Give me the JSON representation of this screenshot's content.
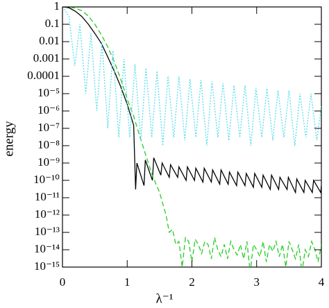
{
  "chart_data": {
    "type": "line",
    "xlabel": "λ⁻¹",
    "ylabel": "energy",
    "xlim": [
      0,
      4
    ],
    "xticks": [
      0,
      1,
      2,
      3,
      4
    ],
    "ylim": [
      1e-15,
      1
    ],
    "ylog": true,
    "yticks": [
      1,
      0.1,
      0.01,
      0.001,
      0.0001,
      {
        "value": 1e-05,
        "label": "10⁻⁵"
      },
      {
        "value": 1e-06,
        "label": "10⁻⁶"
      },
      {
        "value": 1e-07,
        "label": "10⁻⁷"
      },
      {
        "value": 1e-08,
        "label": "10⁻⁸"
      },
      {
        "value": 1e-09,
        "label": "10⁻⁹"
      },
      {
        "value": 1e-10,
        "label": "10⁻¹⁰"
      },
      {
        "value": 1e-11,
        "label": "10⁻¹¹"
      },
      {
        "value": 1e-12,
        "label": "10⁻¹²"
      },
      {
        "value": 1e-13,
        "label": "10⁻¹³"
      },
      {
        "value": 1e-14,
        "label": "10⁻¹⁴"
      },
      {
        "value": 1e-15,
        "label": "10⁻¹⁵"
      }
    ],
    "series": [
      {
        "color": "#000000",
        "dash": "solid",
        "x": [
          0,
          0.1,
          0.2,
          0.3,
          0.4,
          0.5,
          0.6,
          0.7,
          0.8,
          0.9,
          1.0,
          1.05,
          1.1,
          1.13,
          1.15,
          1.26,
          1.28,
          1.39,
          1.41,
          1.52,
          1.54,
          1.65,
          1.67,
          1.78,
          1.8,
          1.91,
          1.93,
          2.04,
          2.06,
          2.17,
          2.19,
          2.3,
          2.32,
          2.43,
          2.45,
          2.56,
          2.58,
          2.69,
          2.71,
          2.82,
          2.84,
          2.95,
          2.97,
          3.08,
          3.1,
          3.21,
          3.23,
          3.34,
          3.36,
          3.47,
          3.49,
          3.6,
          3.62,
          3.73,
          3.75,
          3.86,
          3.88,
          3.99,
          4.0
        ],
        "values": [
          1,
          0.9,
          0.56,
          0.28,
          0.1,
          0.03,
          0.008,
          0.0013,
          0.0002,
          2.5e-05,
          2.5e-06,
          6e-07,
          1.5e-07,
          3e-11,
          1e-09,
          5e-11,
          1.5e-09,
          1e-10,
          2e-09,
          2e-10,
          1e-09,
          1.5e-10,
          8e-10,
          1.5e-10,
          6e-10,
          1e-10,
          6e-10,
          1e-10,
          5e-10,
          8e-11,
          5e-10,
          8e-11,
          4e-10,
          6e-11,
          4e-10,
          6e-11,
          3e-10,
          5e-11,
          3e-10,
          5e-11,
          2.5e-10,
          4e-11,
          2.5e-10,
          4e-11,
          2e-10,
          3e-11,
          2e-10,
          3e-11,
          1.5e-10,
          3e-11,
          1.5e-10,
          2e-11,
          1.2e-10,
          2e-11,
          1e-10,
          2e-11,
          1e-10,
          2e-11,
          5e-11
        ]
      },
      {
        "color": "#22cc22",
        "dash": "dashed",
        "x": [
          0,
          0.1,
          0.2,
          0.3,
          0.4,
          0.5,
          0.6,
          0.7,
          0.8,
          0.9,
          1.0,
          1.1,
          1.2,
          1.3,
          1.4,
          1.5,
          1.6,
          1.65,
          1.7,
          1.75,
          1.8,
          1.85,
          1.9,
          1.95,
          2.0,
          2.05,
          2.1,
          2.15,
          2.2,
          2.25,
          2.3,
          2.35,
          2.4,
          2.45,
          2.5,
          2.55,
          2.6,
          2.65,
          2.7,
          2.75,
          2.8,
          2.85,
          2.9,
          2.95,
          3.0,
          3.05,
          3.1,
          3.15,
          3.2,
          3.25,
          3.3,
          3.35,
          3.4,
          3.45,
          3.5,
          3.55,
          3.6,
          3.65,
          3.7,
          3.75,
          3.8,
          3.85,
          3.9,
          3.95,
          4.0
        ],
        "values": [
          1,
          0.97,
          0.85,
          0.6,
          0.3,
          0.1,
          0.025,
          0.005,
          0.0007,
          7e-05,
          5e-06,
          5e-07,
          3e-08,
          2e-09,
          1.5e-10,
          2e-11,
          1e-12,
          1e-13,
          1.5e-13,
          2e-14,
          3e-14,
          1e-15,
          5e-14,
          3e-14,
          2e-15,
          4e-14,
          2e-14,
          6e-15,
          3e-14,
          2e-14,
          3e-15,
          5e-14,
          1e-14,
          4e-15,
          2e-14,
          3e-15,
          3e-14,
          1e-14,
          5e-15,
          2e-14,
          3e-15,
          3e-14,
          5e-16,
          2e-14,
          1e-14,
          4e-15,
          3e-14,
          2e-15,
          2e-14,
          8e-15,
          3e-14,
          4e-15,
          2e-14,
          1e-15,
          3e-14,
          1e-14,
          3e-15,
          2e-14,
          5e-16,
          1e-14,
          4e-15,
          3e-14,
          1e-14,
          2e-15,
          2e-14
        ]
      },
      {
        "color": "#55ddee",
        "dash": "dotted",
        "x": [
          0,
          0.1,
          0.19,
          0.27,
          0.36,
          0.44,
          0.53,
          0.61,
          0.7,
          0.78,
          0.87,
          0.95,
          1.04,
          1.12,
          1.21,
          1.29,
          1.38,
          1.46,
          1.55,
          1.63,
          1.72,
          1.8,
          1.89,
          1.97,
          2.06,
          2.14,
          2.23,
          2.31,
          2.4,
          2.48,
          2.57,
          2.65,
          2.74,
          2.82,
          2.91,
          2.99,
          3.08,
          3.16,
          3.25,
          3.33,
          3.42,
          3.5,
          3.59,
          3.67,
          3.76,
          3.84,
          3.93,
          4.0
        ],
        "values": [
          1,
          0.3,
          0.0004,
          0.1,
          1e-05,
          0.03,
          1e-06,
          0.01,
          1e-07,
          0.003,
          3e-08,
          0.001,
          3e-08,
          0.0005,
          2e-08,
          0.0003,
          3e-08,
          0.0002,
          1e-08,
          0.0001,
          3e-08,
          0.0001,
          2e-08,
          7e-05,
          3e-08,
          6e-05,
          1e-08,
          5e-05,
          3e-08,
          4e-05,
          2e-08,
          3e-05,
          3e-08,
          3e-05,
          1e-08,
          2e-05,
          3e-08,
          2e-05,
          2e-08,
          1.5e-05,
          3e-08,
          1.5e-05,
          1e-08,
          1e-05,
          3e-08,
          1e-05,
          2e-08,
          2e-06
        ]
      }
    ]
  }
}
